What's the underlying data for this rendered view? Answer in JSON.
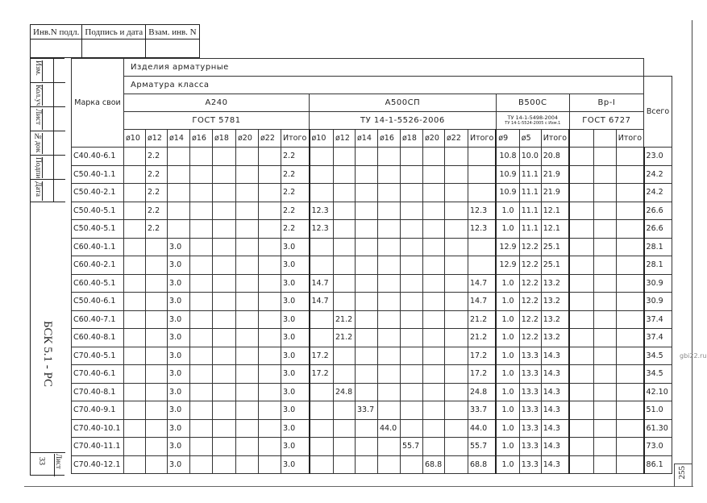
{
  "stamp": {
    "inv_podl": "Инв.N подл.",
    "podpis": "Подпись и дата",
    "vzam": "Взам. инв. N"
  },
  "strip": {
    "labels": [
      "Изм.",
      "Кол.уч",
      "Лист",
      "№док",
      "Подпись",
      "Дата"
    ],
    "doc_code": "БСК 5.1 - РС",
    "sheet_label": "Лист",
    "sheet_no": "33"
  },
  "header": {
    "mark": "Марка свои",
    "title1": "Изделия арматурные",
    "title2": "Арматура класса",
    "a240": "А240",
    "a240_std": "ГОСТ 5781",
    "a500": "А500СП",
    "a500_std": "ТУ 14-1-5526-2006",
    "b500": "В500С",
    "b500_std1": "ТУ 14-1-5498-2004",
    "b500_std2": "ТУ 14-1-5524-2005 с Изм.1",
    "vr": "Вр-I",
    "vr_std": "ГОСТ 6727",
    "total": "Всего",
    "a240_cols": [
      "ø10",
      "ø12",
      "ø14",
      "ø16",
      "ø18",
      "ø20",
      "ø22",
      "Итого"
    ],
    "a500_cols": [
      "ø10",
      "ø12",
      "ø14",
      "ø16",
      "ø18",
      "ø20",
      "ø22",
      "Итого"
    ],
    "b500_cols": [
      "ø9",
      "ø5",
      "Итого"
    ],
    "vr_cols": [
      "",
      "",
      "Итого"
    ]
  },
  "rows": [
    {
      "mark": "C40.40-6.1",
      "a240": [
        "",
        "2.2",
        "",
        "",
        "",
        "",
        "",
        "2.2"
      ],
      "a500": [
        "",
        "",
        "",
        "",
        "",
        "",
        "",
        ""
      ],
      "b500": [
        "10.8",
        "10.0",
        "20.8"
      ],
      "vr": [
        "",
        "",
        ""
      ],
      "total": "23.0"
    },
    {
      "mark": "C50.40-1.1",
      "a240": [
        "",
        "2.2",
        "",
        "",
        "",
        "",
        "",
        "2.2"
      ],
      "a500": [
        "",
        "",
        "",
        "",
        "",
        "",
        "",
        ""
      ],
      "b500": [
        "10.9",
        "11.1",
        "21.9"
      ],
      "vr": [
        "",
        "",
        ""
      ],
      "total": "24.2"
    },
    {
      "mark": "C50.40-2.1",
      "a240": [
        "",
        "2.2",
        "",
        "",
        "",
        "",
        "",
        "2.2"
      ],
      "a500": [
        "",
        "",
        "",
        "",
        "",
        "",
        "",
        ""
      ],
      "b500": [
        "10.9",
        "11.1",
        "21.9"
      ],
      "vr": [
        "",
        "",
        ""
      ],
      "total": "24.2"
    },
    {
      "mark": "C50.40-5.1",
      "a240": [
        "",
        "2.2",
        "",
        "",
        "",
        "",
        "",
        "2.2"
      ],
      "a500": [
        "12.3",
        "",
        "",
        "",
        "",
        "",
        "",
        "12.3"
      ],
      "b500": [
        "1.0",
        "11.1",
        "12.1"
      ],
      "vr": [
        "",
        "",
        ""
      ],
      "total": "26.6"
    },
    {
      "mark": "C50.40-5.1",
      "a240": [
        "",
        "2.2",
        "",
        "",
        "",
        "",
        "",
        "2.2"
      ],
      "a500": [
        "12.3",
        "",
        "",
        "",
        "",
        "",
        "",
        "12.3"
      ],
      "b500": [
        "1.0",
        "11.1",
        "12.1"
      ],
      "vr": [
        "",
        "",
        ""
      ],
      "total": "26.6"
    },
    {
      "mark": "C60.40-1.1",
      "a240": [
        "",
        "",
        "3.0",
        "",
        "",
        "",
        "",
        "3.0"
      ],
      "a500": [
        "",
        "",
        "",
        "",
        "",
        "",
        "",
        ""
      ],
      "b500": [
        "12.9",
        "12.2",
        "25.1"
      ],
      "vr": [
        "",
        "",
        ""
      ],
      "total": "28.1"
    },
    {
      "mark": "C60.40-2.1",
      "a240": [
        "",
        "",
        "3.0",
        "",
        "",
        "",
        "",
        "3.0"
      ],
      "a500": [
        "",
        "",
        "",
        "",
        "",
        "",
        "",
        ""
      ],
      "b500": [
        "12.9",
        "12.2",
        "25.1"
      ],
      "vr": [
        "",
        "",
        ""
      ],
      "total": "28.1"
    },
    {
      "mark": "C60.40-5.1",
      "a240": [
        "",
        "",
        "3.0",
        "",
        "",
        "",
        "",
        "3.0"
      ],
      "a500": [
        "14.7",
        "",
        "",
        "",
        "",
        "",
        "",
        "14.7"
      ],
      "b500": [
        "1.0",
        "12.2",
        "13.2"
      ],
      "vr": [
        "",
        "",
        ""
      ],
      "total": "30.9"
    },
    {
      "mark": "C50.40-6.1",
      "a240": [
        "",
        "",
        "3.0",
        "",
        "",
        "",
        "",
        "3.0"
      ],
      "a500": [
        "14.7",
        "",
        "",
        "",
        "",
        "",
        "",
        "14.7"
      ],
      "b500": [
        "1.0",
        "12.2",
        "13.2"
      ],
      "vr": [
        "",
        "",
        ""
      ],
      "total": "30.9"
    },
    {
      "mark": "C60.40-7.1",
      "a240": [
        "",
        "",
        "3.0",
        "",
        "",
        "",
        "",
        "3.0"
      ],
      "a500": [
        "",
        "21.2",
        "",
        "",
        "",
        "",
        "",
        "21.2"
      ],
      "b500": [
        "1.0",
        "12.2",
        "13.2"
      ],
      "vr": [
        "",
        "",
        ""
      ],
      "total": "37.4"
    },
    {
      "mark": "C60.40-8.1",
      "a240": [
        "",
        "",
        "3.0",
        "",
        "",
        "",
        "",
        "3.0"
      ],
      "a500": [
        "",
        "21.2",
        "",
        "",
        "",
        "",
        "",
        "21.2"
      ],
      "b500": [
        "1.0",
        "12.2",
        "13.2"
      ],
      "vr": [
        "",
        "",
        ""
      ],
      "total": "37.4"
    },
    {
      "mark": "C70.40-5.1",
      "a240": [
        "",
        "",
        "3.0",
        "",
        "",
        "",
        "",
        "3.0"
      ],
      "a500": [
        "17.2",
        "",
        "",
        "",
        "",
        "",
        "",
        "17.2"
      ],
      "b500": [
        "1.0",
        "13.3",
        "14.3"
      ],
      "vr": [
        "",
        "",
        ""
      ],
      "total": "34.5"
    },
    {
      "mark": "C70.40-6.1",
      "a240": [
        "",
        "",
        "3.0",
        "",
        "",
        "",
        "",
        "3.0"
      ],
      "a500": [
        "17.2",
        "",
        "",
        "",
        "",
        "",
        "",
        "17.2"
      ],
      "b500": [
        "1.0",
        "13.3",
        "14.3"
      ],
      "vr": [
        "",
        "",
        ""
      ],
      "total": "34.5"
    },
    {
      "mark": "C70.40-8.1",
      "a240": [
        "",
        "",
        "3.0",
        "",
        "",
        "",
        "",
        "3.0"
      ],
      "a500": [
        "",
        "24.8",
        "",
        "",
        "",
        "",
        "",
        "24.8"
      ],
      "b500": [
        "1.0",
        "13.3",
        "14.3"
      ],
      "vr": [
        "",
        "",
        ""
      ],
      "total": "42.10"
    },
    {
      "mark": "C70.40-9.1",
      "a240": [
        "",
        "",
        "3.0",
        "",
        "",
        "",
        "",
        "3.0"
      ],
      "a500": [
        "",
        "",
        "33.7",
        "",
        "",
        "",
        "",
        "33.7"
      ],
      "b500": [
        "1.0",
        "13.3",
        "14.3"
      ],
      "vr": [
        "",
        "",
        ""
      ],
      "total": "51.0"
    },
    {
      "mark": "C70.40-10.1",
      "a240": [
        "",
        "",
        "3.0",
        "",
        "",
        "",
        "",
        "3.0"
      ],
      "a500": [
        "",
        "",
        "",
        "44.0",
        "",
        "",
        "",
        "44.0"
      ],
      "b500": [
        "1.0",
        "13.3",
        "14.3"
      ],
      "vr": [
        "",
        "",
        ""
      ],
      "total": "61.30"
    },
    {
      "mark": "C70.40-11.1",
      "a240": [
        "",
        "",
        "3.0",
        "",
        "",
        "",
        "",
        "3.0"
      ],
      "a500": [
        "",
        "",
        "",
        "",
        "55.7",
        "",
        "",
        "55.7"
      ],
      "b500": [
        "1.0",
        "13.3",
        "14.3"
      ],
      "vr": [
        "",
        "",
        ""
      ],
      "total": "73.0"
    },
    {
      "mark": "C70.40-12.1",
      "a240": [
        "",
        "",
        "3.0",
        "",
        "",
        "",
        "",
        "3.0"
      ],
      "a500": [
        "",
        "",
        "",
        "",
        "",
        "68.8",
        "",
        "68.8"
      ],
      "b500": [
        "1.0",
        "13.3",
        "14.3"
      ],
      "vr": [
        "",
        "",
        ""
      ],
      "total": "86.1"
    }
  ],
  "page_number": "255",
  "watermark": "gbi22.ru"
}
